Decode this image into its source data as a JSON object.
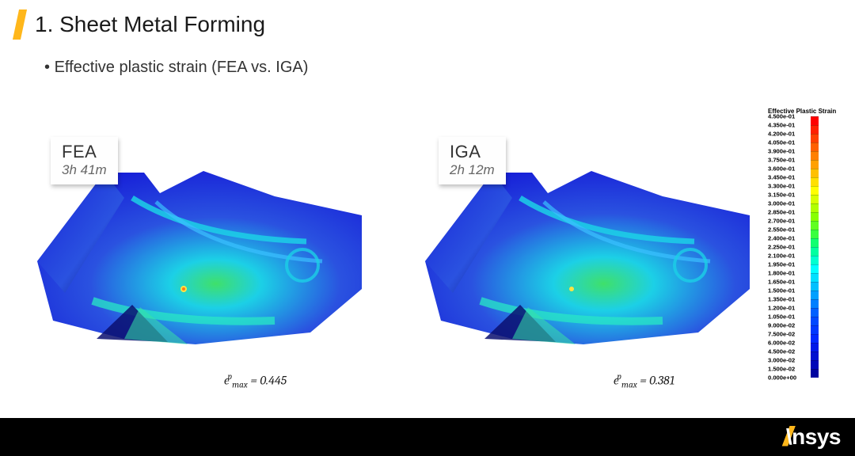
{
  "header": {
    "title": "1. Sheet Metal Forming",
    "accent_color": "#ffb71b"
  },
  "subtitle": "Effective plastic strain (FEA vs. IGA)",
  "panels": [
    {
      "method": "FEA",
      "time": "3h 41m",
      "eps_symbol": "ϵ",
      "eps_sup": "p",
      "eps_sub": "max",
      "eps_value": "= 0.445"
    },
    {
      "method": "IGA",
      "time": "2h 12m",
      "eps_symbol": "ϵ",
      "eps_sup": "p",
      "eps_sub": "max",
      "eps_value": "= 0.381"
    }
  ],
  "contour_colors": {
    "base_blue": "#1720d8",
    "mid_blue": "#2a52e0",
    "cyan": "#1cd0e6",
    "green": "#3fe06a",
    "yellow": "#f5e342",
    "orange": "#ff7a1a",
    "red": "#ff1a1a",
    "shadow": "#0a0f70"
  },
  "legend": {
    "title": "Effective Plastic Strain",
    "entries": [
      {
        "value": "4.500e-01",
        "color": "#ff0000"
      },
      {
        "value": "4.350e-01",
        "color": "#ff2000"
      },
      {
        "value": "4.200e-01",
        "color": "#ff4000"
      },
      {
        "value": "4.050e-01",
        "color": "#ff6000"
      },
      {
        "value": "3.900e-01",
        "color": "#ff8000"
      },
      {
        "value": "3.750e-01",
        "color": "#ffa000"
      },
      {
        "value": "3.600e-01",
        "color": "#ffc000"
      },
      {
        "value": "3.450e-01",
        "color": "#ffe000"
      },
      {
        "value": "3.300e-01",
        "color": "#ffff00"
      },
      {
        "value": "3.150e-01",
        "color": "#d8ff00"
      },
      {
        "value": "3.000e-01",
        "color": "#b0ff00"
      },
      {
        "value": "2.850e-01",
        "color": "#88ff00"
      },
      {
        "value": "2.700e-01",
        "color": "#60ff20"
      },
      {
        "value": "2.550e-01",
        "color": "#38ff40"
      },
      {
        "value": "2.400e-01",
        "color": "#10ff70"
      },
      {
        "value": "2.250e-01",
        "color": "#00ffa0"
      },
      {
        "value": "2.100e-01",
        "color": "#00ffd0"
      },
      {
        "value": "1.950e-01",
        "color": "#00ffff"
      },
      {
        "value": "1.800e-01",
        "color": "#00e0ff"
      },
      {
        "value": "1.650e-01",
        "color": "#00c0ff"
      },
      {
        "value": "1.500e-01",
        "color": "#00a0ff"
      },
      {
        "value": "1.350e-01",
        "color": "#0080ff"
      },
      {
        "value": "1.200e-01",
        "color": "#0060ff"
      },
      {
        "value": "1.050e-01",
        "color": "#0048ff"
      },
      {
        "value": "9.000e-02",
        "color": "#0038ff"
      },
      {
        "value": "7.500e-02",
        "color": "#0028ff"
      },
      {
        "value": "6.000e-02",
        "color": "#0018e8"
      },
      {
        "value": "4.500e-02",
        "color": "#0010d0"
      },
      {
        "value": "3.000e-02",
        "color": "#0008b8"
      },
      {
        "value": "1.500e-02",
        "color": "#0004a0"
      },
      {
        "value": "0.000e+00",
        "color": "#000090"
      }
    ]
  },
  "footer": {
    "logo_slash": "//",
    "logo_text": "\\nsys",
    "bg": "#000000"
  }
}
